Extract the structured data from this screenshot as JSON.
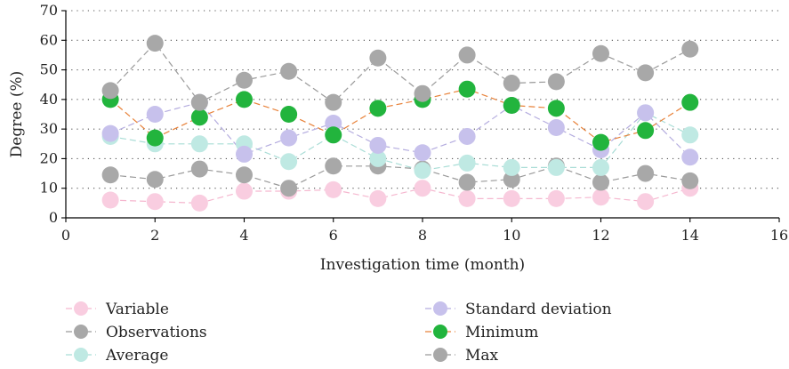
{
  "chart_data": {
    "type": "line",
    "xlabel": "Investigation time (month)",
    "ylabel": "Degree (%)",
    "xlim": [
      0,
      16
    ],
    "ylim": [
      0,
      70
    ],
    "xticks": [
      0,
      2,
      4,
      6,
      8,
      10,
      12,
      14,
      16
    ],
    "yticks": [
      0,
      10,
      20,
      30,
      40,
      50,
      60,
      70
    ],
    "grid": "horizontal dotted",
    "legend_placement": "bottom, two columns",
    "x": [
      1,
      2,
      3,
      4,
      5,
      6,
      7,
      8,
      9,
      10,
      11,
      12,
      13,
      14
    ],
    "series": [
      {
        "name": "Variable",
        "color": "#f9cde0",
        "line_color": "#f5b7cf",
        "values": [
          6,
          5.5,
          5,
          9,
          9,
          9.5,
          6.5,
          10,
          6.5,
          6.5,
          6.5,
          7,
          5.5,
          10
        ]
      },
      {
        "name": "Observations",
        "color": "#a8a8a8",
        "line_color": "#9a9a9a",
        "values": [
          14.5,
          13,
          16.5,
          14.5,
          10,
          17.5,
          17.5,
          16.5,
          12,
          13,
          17.5,
          12,
          15,
          12.5
        ]
      },
      {
        "name": "Average",
        "color": "#bfe9e3",
        "line_color": "#a9ddd6",
        "values": [
          27.5,
          25,
          25,
          25,
          19,
          28,
          20,
          16,
          18.5,
          17,
          17,
          17,
          35.5,
          28
        ]
      },
      {
        "name": "Standard deviation",
        "color": "#c7c1ec",
        "line_color": "#b4acdf",
        "values": [
          28.5,
          35,
          39,
          21.5,
          27,
          32,
          24.5,
          22,
          27.5,
          38,
          30.5,
          23,
          35.5,
          20.5
        ]
      },
      {
        "name": "Minimum",
        "color": "#22b43d",
        "line_color": "#e8823a",
        "values": [
          40,
          27,
          34,
          40,
          35,
          28,
          37,
          40,
          43.5,
          38,
          37,
          25.5,
          29.5,
          39
        ]
      },
      {
        "name": "Max",
        "color": "#a8a8a8",
        "line_color": "#9a9a9a",
        "values": [
          43,
          59,
          39,
          46.5,
          49.5,
          39,
          54,
          42,
          55,
          45.5,
          46,
          55.5,
          49,
          57
        ]
      }
    ]
  }
}
